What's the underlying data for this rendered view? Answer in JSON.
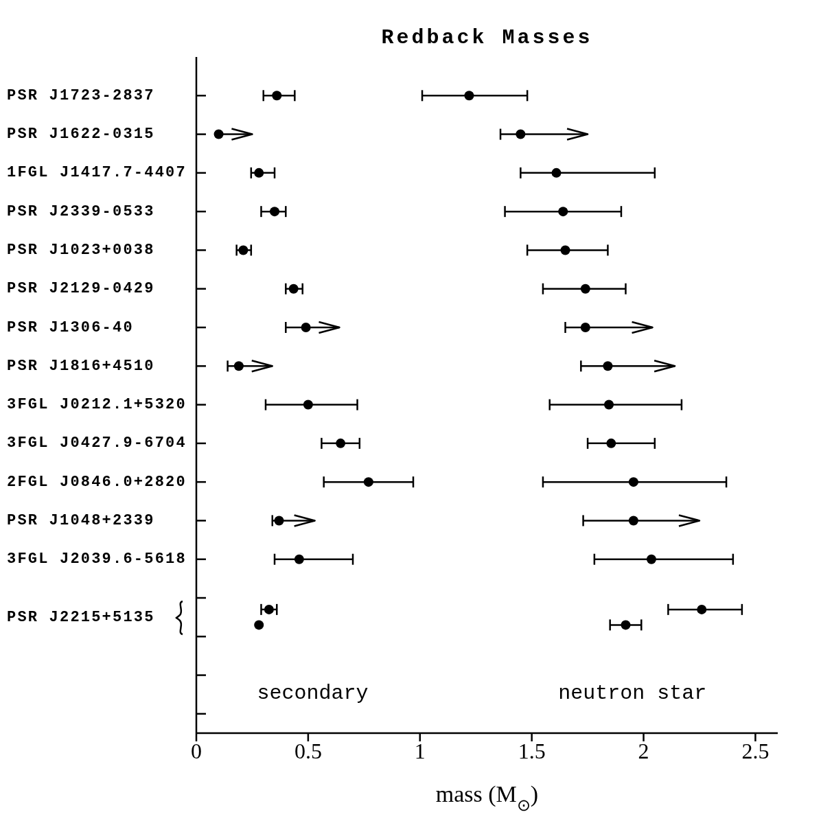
{
  "chart_data": {
    "type": "scatter",
    "orientation": "horizontal",
    "title": "Redback Masses",
    "xlabel": "mass (M$_{⊙}$)",
    "xlim": [
      0,
      2.6
    ],
    "xticks": [
      0,
      0.5,
      1,
      1.5,
      2,
      2.5
    ],
    "categories": [
      "PSR J1723-2837",
      "PSR J1622-0315",
      "1FGL J1417.7-4407",
      "PSR J2339-0533",
      "PSR J1023+0038",
      "PSR J2129-0429",
      "PSR J1306-40",
      "PSR J1816+4510",
      "3FGL J0212.1+5320",
      "3FGL J0427.9-6704",
      "2FGL J0846.0+2820",
      "PSR J1048+2339",
      "3FGL J2039.6-5618",
      "PSR J2215+5135"
    ],
    "marker": "circle",
    "annotations": [
      "secondary",
      "neutron star"
    ],
    "series": [
      {
        "color": "#000000",
        "values": [
          0.36,
          null,
          0.28,
          0.35,
          0.21,
          0.435,
          null,
          null,
          0.5,
          0.645,
          0.77,
          null,
          0.46,
          0.325
        ],
        "errors": [
          [
            0.3,
            0.44
          ],
          null,
          [
            0.245,
            0.35
          ],
          [
            0.29,
            0.4
          ],
          [
            0.18,
            0.245
          ],
          [
            0.4,
            0.475
          ],
          null,
          null,
          [
            0.31,
            0.72
          ],
          [
            0.56,
            0.73
          ],
          [
            0.57,
            0.97
          ],
          null,
          [
            0.35,
            0.7
          ],
          [
            0.29,
            0.36
          ]
        ]
      },
      {
        "color": "#000000",
        "values": [
          1.22,
          null,
          1.61,
          1.64,
          1.65,
          1.74,
          null,
          null,
          1.845,
          1.855,
          1.955,
          null,
          2.035,
          2.26
        ],
        "errors": [
          [
            1.01,
            1.48
          ],
          null,
          [
            1.45,
            2.05
          ],
          [
            1.38,
            1.9
          ],
          [
            1.48,
            1.84
          ],
          [
            1.55,
            1.92
          ],
          null,
          null,
          [
            1.58,
            2.17
          ],
          [
            1.75,
            2.05
          ],
          [
            1.55,
            2.37
          ],
          null,
          [
            1.78,
            2.4
          ],
          [
            2.11,
            2.44
          ]
        ]
      },
      {
        "color": "#000000",
        "values": [
          null,
          0.1,
          null,
          null,
          null,
          null,
          0.49,
          0.19,
          null,
          null,
          null,
          0.37,
          null,
          null
        ],
        "errors": [
          null,
          [
            0.1,
            0.25
          ],
          null,
          null,
          null,
          null,
          [
            0.4,
            0.64
          ],
          [
            0.14,
            0.34
          ],
          null,
          null,
          null,
          [
            0.34,
            0.53
          ],
          null,
          null
        ]
      },
      {
        "color": "#000000",
        "values": [
          null,
          1.45,
          null,
          null,
          null,
          null,
          1.74,
          1.84,
          null,
          null,
          null,
          1.955,
          null,
          null
        ],
        "errors": [
          null,
          [
            1.36,
            1.75
          ],
          null,
          null,
          null,
          null,
          [
            1.65,
            2.04
          ],
          [
            1.72,
            2.14
          ],
          null,
          null,
          null,
          [
            1.73,
            2.25
          ],
          null,
          null
        ]
      },
      {
        "color": "#000000",
        "values": [
          null,
          null,
          null,
          null,
          null,
          null,
          null,
          null,
          null,
          null,
          null,
          null,
          null,
          0.28
        ]
      },
      {
        "color": "#000000",
        "values": [
          null,
          null,
          null,
          null,
          null,
          null,
          null,
          null,
          null,
          null,
          null,
          null,
          null,
          1.92
        ],
        "errors": [
          null,
          null,
          null,
          null,
          null,
          null,
          null,
          null,
          null,
          null,
          null,
          null,
          null,
          [
            1.85,
            1.99
          ]
        ]
      }
    ]
  }
}
